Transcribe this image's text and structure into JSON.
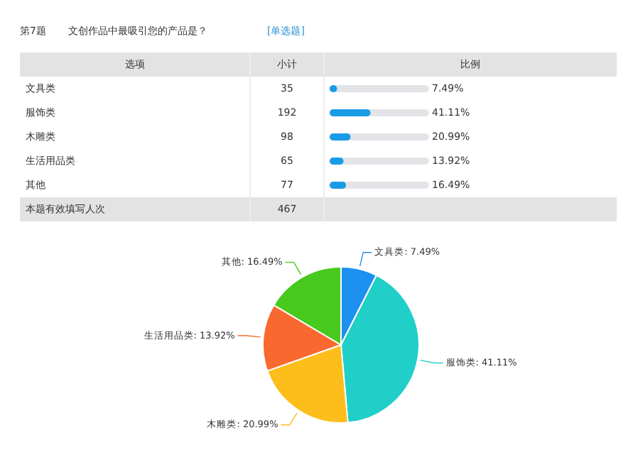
{
  "chart_data": [
    {
      "type": "other",
      "title": "第7题",
      "subtitle": "文创作品中最吸引您的产品是？",
      "categories": [
        "文具类",
        "服饰类",
        "木雕类",
        "生活用品类",
        "其他"
      ],
      "values": [
        7.49,
        41.11,
        20.99,
        13.92,
        16.49
      ],
      "value_labels": [
        "7.49%",
        "41.11%",
        "20.99%",
        "13.92%",
        "16.49%"
      ],
      "color": "#1a9be6",
      "annotations": [
        "[单选题]",
        "选项",
        "小计",
        "比例",
        "35",
        "192",
        "98",
        "65",
        "77",
        "本题有效填写人次",
        "467"
      ]
    },
    {
      "type": "pie",
      "categories": [
        "文具类",
        "服饰类",
        "木雕类",
        "生活用品类",
        "其他"
      ],
      "values": [
        7.49,
        41.11,
        20.99,
        13.92,
        16.49
      ],
      "colors": [
        "#1e90f0",
        "#1fcfc8",
        "#fdbd1a",
        "#f9682f",
        "#47c91e"
      ],
      "value_labels": [
        ": 7.49%",
        ": 41.11%",
        ": 20.99%",
        ": 13.92%",
        ": 16.49%"
      ]
    }
  ]
}
